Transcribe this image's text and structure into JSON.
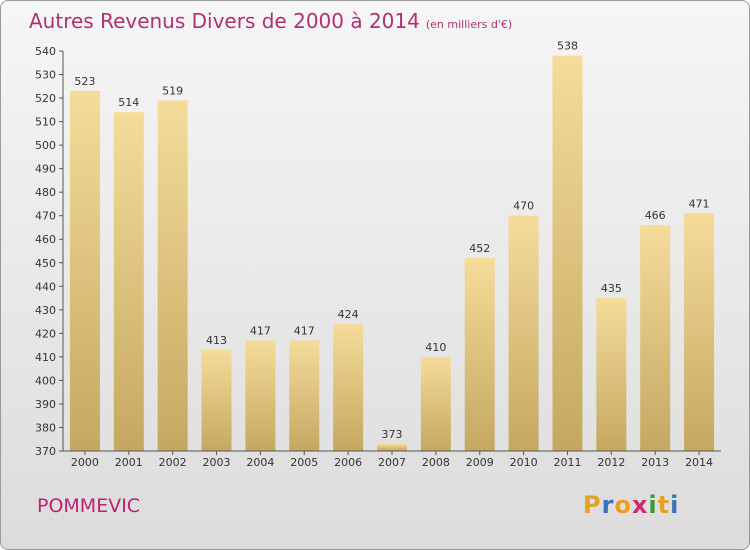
{
  "header": {
    "title": "Autres Revenus Divers de 2000 à 2014",
    "subtitle": "(en milliers d'€)"
  },
  "commune": "POMMEVIC",
  "logo": {
    "letters": [
      "P",
      "r",
      "o",
      "x",
      "i",
      "t",
      "i"
    ],
    "colors": [
      "#e8a020",
      "#3a70c0",
      "#e8a020",
      "#d02a6a",
      "#3a9a30",
      "#e8a020",
      "#3a70c0"
    ]
  },
  "colors": {
    "title": "#b03070",
    "bar_top": "#f5dc9a",
    "bar_bottom": "#c4a862"
  },
  "chart_data": {
    "type": "bar",
    "title": "Autres Revenus Divers de 2000 à 2014",
    "subtitle": "(en milliers d'€)",
    "categories": [
      "2000",
      "2001",
      "2002",
      "2003",
      "2004",
      "2005",
      "2006",
      "2007",
      "2008",
      "2009",
      "2010",
      "2011",
      "2012",
      "2013",
      "2014"
    ],
    "values": [
      523,
      514,
      519,
      413,
      417,
      417,
      424,
      373,
      410,
      452,
      470,
      538,
      435,
      466,
      471
    ],
    "ylim": [
      370,
      540
    ],
    "yticks": [
      370,
      380,
      390,
      400,
      410,
      420,
      430,
      440,
      450,
      460,
      470,
      480,
      490,
      500,
      510,
      520,
      530,
      540
    ],
    "grid": false,
    "legend": "none"
  }
}
